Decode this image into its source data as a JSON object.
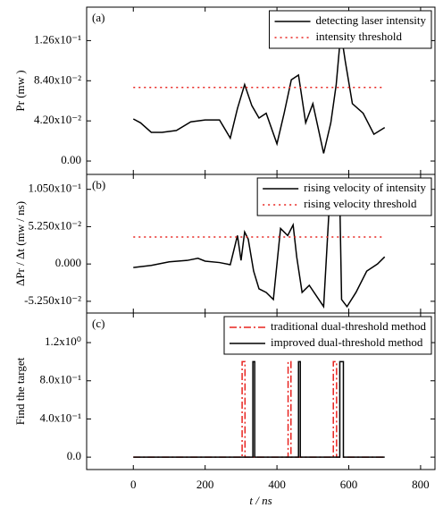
{
  "chart_data": [
    {
      "type": "line",
      "panel_label": "(a)",
      "ylabel": "Pr (mw )",
      "x": [
        0,
        20,
        50,
        80,
        120,
        160,
        200,
        240,
        270,
        290,
        310,
        330,
        350,
        370,
        400,
        420,
        440,
        460,
        480,
        500,
        530,
        550,
        565,
        578,
        590,
        610,
        640,
        670,
        700
      ],
      "xlim": [
        -130,
        840
      ],
      "xticks": [
        0,
        200,
        400,
        600,
        800
      ],
      "ylim": [
        -0.014,
        0.161
      ],
      "yticks": [
        {
          "value": 0,
          "label": "0.00"
        },
        {
          "value": 0.042,
          "label": "4.20x10⁻²"
        },
        {
          "value": 0.084,
          "label": "8.40x10⁻²"
        },
        {
          "value": 0.126,
          "label": "1.26x10⁻¹"
        }
      ],
      "legend": "upper right",
      "series": [
        {
          "name": "detecting laser intensity",
          "color": "#000000",
          "style": "solid",
          "values": [
            0.044,
            0.04,
            0.03,
            0.03,
            0.032,
            0.041,
            0.043,
            0.043,
            0.024,
            0.055,
            0.08,
            0.058,
            0.045,
            0.05,
            0.018,
            0.05,
            0.085,
            0.09,
            0.04,
            0.06,
            0.008,
            0.04,
            0.08,
            0.135,
            0.105,
            0.06,
            0.05,
            0.028,
            0.035
          ]
        },
        {
          "name": "intensity threshold",
          "color": "#e8231f",
          "style": "dotted",
          "x": [
            0,
            700
          ],
          "values": [
            0.077,
            0.077
          ]
        }
      ]
    },
    {
      "type": "line",
      "panel_label": "(b)",
      "ylabel": "ΔPr / Δt (mw / ns)",
      "x": [
        0,
        50,
        100,
        150,
        180,
        200,
        240,
        270,
        290,
        300,
        310,
        320,
        335,
        350,
        370,
        390,
        410,
        430,
        445,
        455,
        470,
        490,
        510,
        530,
        545,
        560,
        575,
        580,
        595,
        620,
        650,
        680,
        700
      ],
      "xlim": [
        -130,
        840
      ],
      "xticks": [
        0,
        200,
        400,
        600,
        800
      ],
      "ylim": [
        -0.069,
        0.126
      ],
      "yticks": [
        {
          "value": -0.0525,
          "label": "-5.250x10⁻²"
        },
        {
          "value": 0,
          "label": "0.000"
        },
        {
          "value": 0.0525,
          "label": "5.250x10⁻²"
        },
        {
          "value": 0.105,
          "label": "1.050x10⁻¹"
        }
      ],
      "legend": "upper right",
      "series": [
        {
          "name": "rising velocity of intensity",
          "color": "#000000",
          "style": "solid",
          "values": [
            -0.005,
            -0.002,
            0.003,
            0.005,
            0.008,
            0.004,
            0.002,
            -0.001,
            0.04,
            0.005,
            0.045,
            0.035,
            -0.01,
            -0.035,
            -0.04,
            -0.05,
            0.05,
            0.04,
            0.055,
            0.01,
            -0.04,
            -0.03,
            -0.045,
            -0.06,
            0.075,
            0.1,
            0.09,
            -0.05,
            -0.06,
            -0.04,
            -0.01,
            0.0,
            0.01
          ]
        },
        {
          "name": "rising velocity threshold",
          "color": "#e8231f",
          "style": "dotted",
          "x": [
            0,
            700
          ],
          "values": [
            0.038,
            0.038
          ]
        }
      ]
    },
    {
      "type": "line",
      "panel_label": "(c)",
      "ylabel": "Find the target",
      "xlabel": "t / ns",
      "xlim": [
        -130,
        840
      ],
      "xticks": [
        0,
        200,
        400,
        600,
        800
      ],
      "ylim": [
        -0.13,
        1.51
      ],
      "yticks": [
        {
          "value": 0,
          "label": "0.0"
        },
        {
          "value": 0.4,
          "label": "4.0x10⁻¹"
        },
        {
          "value": 0.8,
          "label": "8.0x10⁻¹"
        },
        {
          "value": 1.2,
          "label": "1.2x10⁰"
        }
      ],
      "legend": "upper right",
      "series": [
        {
          "name": "traditional dual-threshold method",
          "color": "#e8231f",
          "style": "dashdot",
          "x": [
            0,
            303,
            303,
            311,
            311,
            431,
            431,
            439,
            439,
            557,
            557,
            566,
            566,
            700
          ],
          "values": [
            0,
            0,
            1,
            1,
            0,
            0,
            1,
            1,
            0,
            0,
            1,
            1,
            0,
            0
          ]
        },
        {
          "name": "improved dual-threshold method",
          "color": "#000000",
          "style": "solid",
          "x": [
            0,
            333,
            333,
            338,
            338,
            460,
            460,
            465,
            465,
            575,
            575,
            585,
            585,
            700
          ],
          "values": [
            0,
            0,
            1,
            1,
            0,
            0,
            1,
            1,
            0,
            0,
            1,
            1,
            0,
            0
          ]
        }
      ]
    }
  ]
}
